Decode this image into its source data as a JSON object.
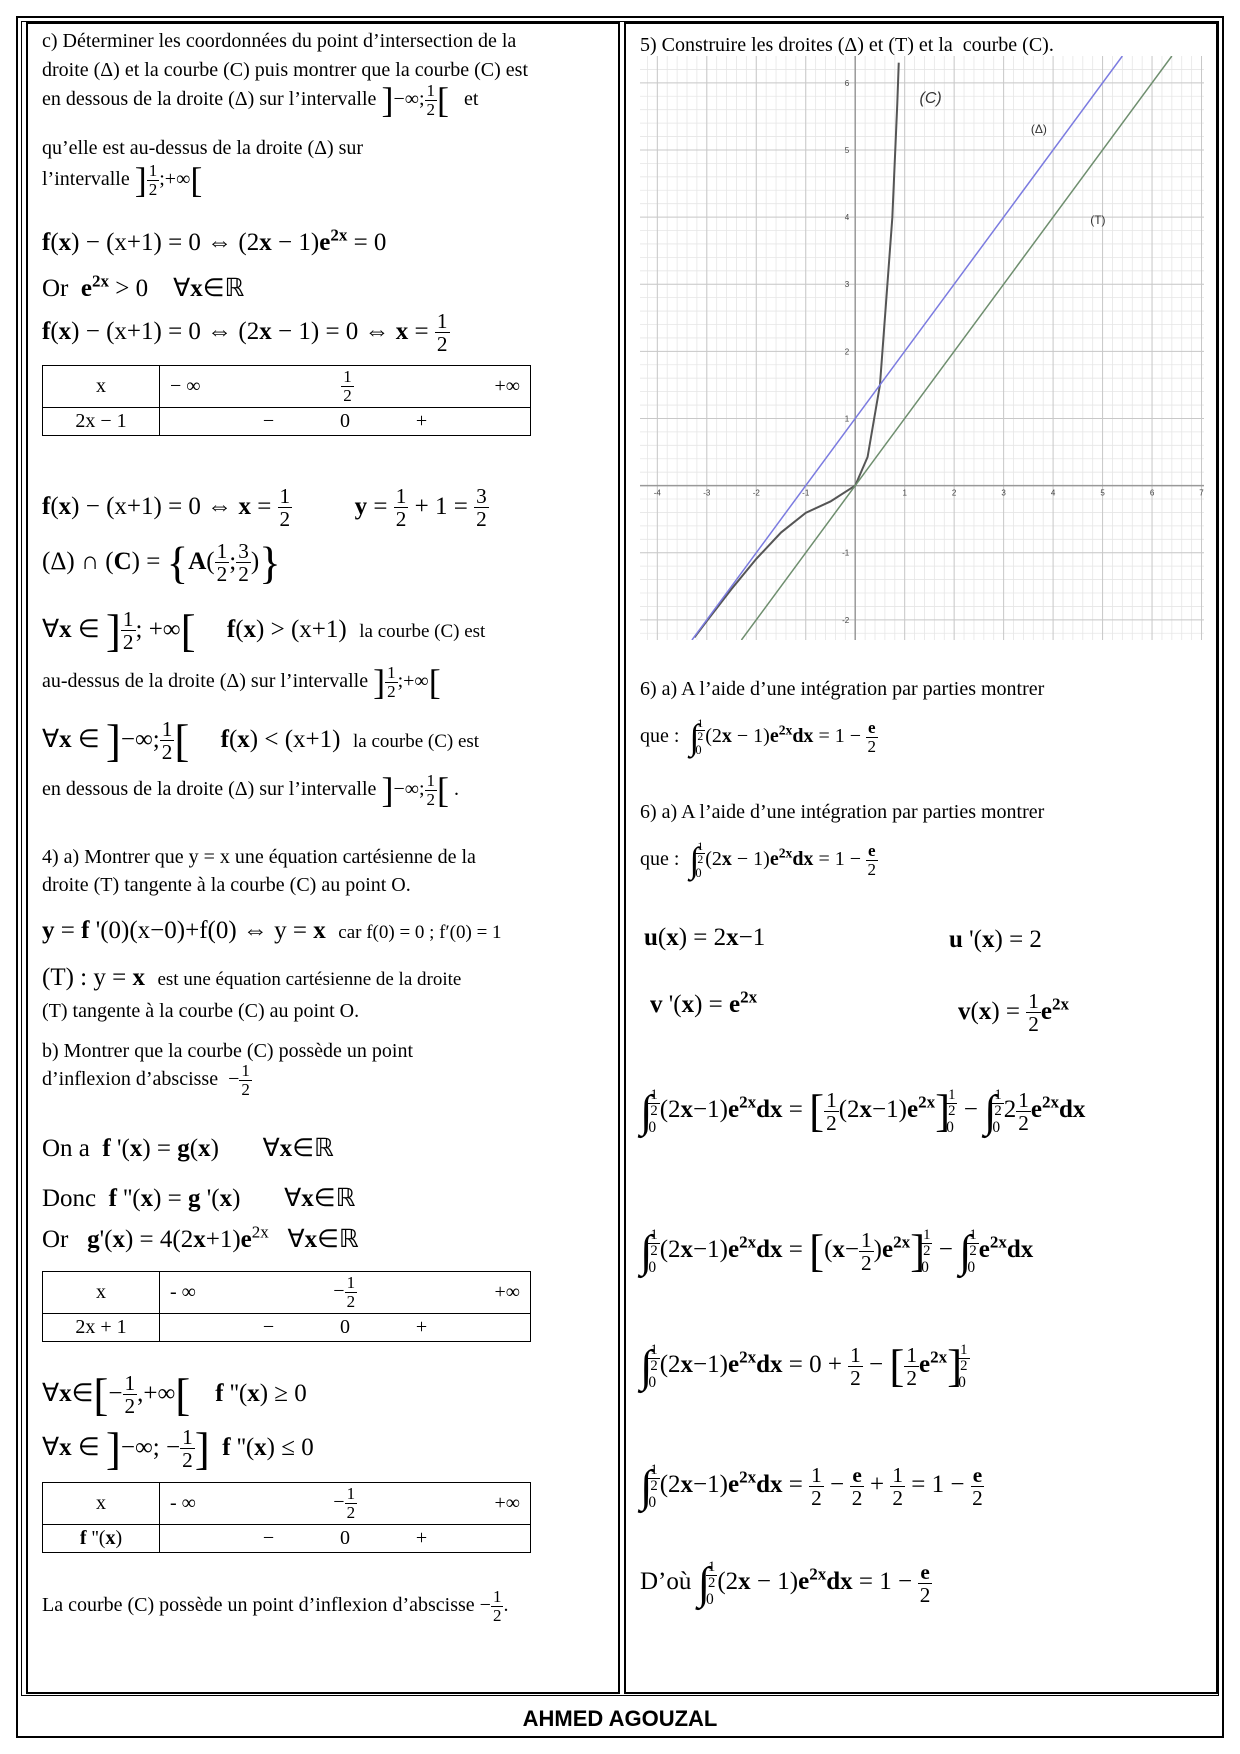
{
  "left": [
    "c) Déterminer les coordonnées du point d’intersection de la",
    "droite (Δ) et la courbe (C) puis montrer que la courbe (C) est",
    [
      "en dessous de la droite (Δ) sur l’intervalle ",
      {
        "big": "]"
      },
      "−∞;",
      {
        "frac": [
          "1",
          "2"
        ]
      },
      {
        "big": "["
      },
      "   et"
    ],
    "qu’elle est au-dessus de la droite (Δ) sur",
    [
      "l’intervalle ",
      {
        "big": "]"
      },
      {
        "frac": [
          "1",
          "2"
        ]
      },
      ";+∞",
      {
        "big": "["
      }
    ],
    [
      {
        "b": "f"
      },
      "(",
      {
        "b": "x"
      },
      ") − (x+1) = 0 ⇔ (2",
      {
        "b": "x"
      },
      " − 1)",
      {
        "b": "e"
      },
      {
        "sup": {
          "b": "2x"
        }
      },
      " = 0"
    ],
    [
      "Or  ",
      {
        "b": "e"
      },
      {
        "sup": {
          "b": "2x"
        }
      },
      " > 0    ∀",
      {
        "b": "x"
      },
      "∈ℝ"
    ],
    [
      {
        "b": "f"
      },
      "(",
      {
        "b": "x"
      },
      ") − (x+1) = 0 ⇔ (2",
      {
        "b": "x"
      },
      " − 1) = 0 ⇔ ",
      {
        "b": "x"
      },
      " = ",
      {
        "frac": [
          "1",
          "2"
        ]
      }
    ],
    [
      {
        "b": "f"
      },
      "(",
      {
        "b": "x"
      },
      ") − (x+1) = 0 ⇔ ",
      {
        "b": "x"
      },
      " = ",
      {
        "frac": [
          "1",
          "2"
        ]
      },
      "          ",
      {
        "b": "y"
      },
      " = ",
      {
        "frac": [
          "1",
          "2"
        ]
      },
      " + 1 = ",
      {
        "frac": [
          "3",
          "2"
        ]
      }
    ],
    [
      "(Δ) ∩ (",
      {
        "b": "C"
      },
      ") = ",
      {
        "big": "{"
      },
      {
        "b": "A"
      },
      "(",
      {
        "frac": [
          "1",
          "2"
        ]
      },
      ";",
      {
        "frac": [
          "3",
          "2"
        ]
      },
      ")",
      {
        "big": "}"
      }
    ],
    [
      "∀",
      {
        "b": "x"
      },
      " ∈ ",
      {
        "big": "]"
      },
      {
        "frac": [
          "1",
          "2"
        ]
      },
      "; +∞",
      {
        "big": "["
      },
      "     ",
      {
        "b": "f"
      },
      "(",
      {
        "b": "x"
      },
      ") > (x+1)  ",
      {
        "small": "la courbe (C) est"
      }
    ],
    [
      "au-dessus de la droite (Δ) sur l’intervalle ",
      {
        "big": "]"
      },
      {
        "frac": [
          "1",
          "2"
        ]
      },
      ";+∞",
      {
        "big": "["
      }
    ],
    [
      "∀",
      {
        "b": "x"
      },
      " ∈ ",
      {
        "big": "]"
      },
      "−∞;",
      {
        "frac": [
          "1",
          "2"
        ]
      },
      {
        "big": "["
      },
      "     ",
      {
        "b": "f"
      },
      "(",
      {
        "b": "x"
      },
      ") < (x+1)  ",
      {
        "small": "la courbe (C) est"
      }
    ],
    [
      "en dessous de la droite (Δ) sur l’intervalle ",
      {
        "big": "]"
      },
      "−∞;",
      {
        "frac": [
          "1",
          "2"
        ]
      },
      {
        "big": "["
      },
      " ."
    ],
    "4) a) Montrer que y = x une équation cartésienne de la",
    "droite (T) tangente à la courbe (C) au point O.",
    [
      {
        "b": "y"
      },
      " = ",
      {
        "b": "f"
      },
      " '(0)(x−0)+f(0) ⇔ y = ",
      {
        "b": "x"
      },
      "  ",
      {
        "small": "car f(0) = 0 ; f′(0) = 1"
      }
    ],
    [
      "(T) : y = ",
      {
        "b": "x"
      },
      "  ",
      {
        "small": "est une équation cartésienne de la droite"
      }
    ],
    "(T) tangente à la courbe (C) au point O.",
    "b) Montrer que la courbe (C) possède un point",
    [
      "d’inflexion d’abscisse  −",
      {
        "frac": [
          "1",
          "2"
        ]
      }
    ],
    [
      "On a  ",
      {
        "b": "f"
      },
      " '(",
      {
        "b": "x"
      },
      ") = ",
      {
        "b": "g"
      },
      "(",
      {
        "b": "x"
      },
      ")       ∀",
      {
        "b": "x"
      },
      "∈ℝ"
    ],
    [
      "Donc  ",
      {
        "b": "f"
      },
      " ''(",
      {
        "b": "x"
      },
      ") = ",
      {
        "b": "g"
      },
      " '(",
      {
        "b": "x"
      },
      ")       ∀",
      {
        "b": "x"
      },
      "∈ℝ"
    ],
    [
      "Or   ",
      {
        "b": "g"
      },
      "'(",
      {
        "b": "x"
      },
      ") = 4(2",
      {
        "b": "x"
      },
      "+1)",
      {
        "b": "e"
      },
      {
        "sup": "2x"
      },
      "   ∀",
      {
        "b": "x"
      },
      "∈ℝ"
    ],
    [
      "∀",
      {
        "b": "x"
      },
      "∈",
      {
        "big": "["
      },
      "−",
      {
        "frac": [
          "1",
          "2"
        ]
      },
      ",+∞",
      {
        "big": "["
      },
      "    ",
      {
        "b": "f"
      },
      " ''(",
      {
        "b": "x"
      },
      ") ≥ 0"
    ],
    [
      "∀",
      {
        "b": "x"
      },
      " ∈ ",
      {
        "big": "]"
      },
      "−∞; −",
      {
        "frac": [
          "1",
          "2"
        ]
      },
      {
        "big": "]"
      },
      "  ",
      {
        "b": "f"
      },
      " ''(",
      {
        "b": "x"
      },
      ") ≤ 0"
    ],
    [
      "La courbe (C) possède un point d’inflexion d’abscisse −",
      {
        "frac": [
          "1",
          "2"
        ]
      },
      "."
    ]
  ],
  "tables": [
    {
      "rows": [
        [
          "x",
          [
            "− ∞",
            {
              "frac": [
                "1",
                "2"
              ]
            },
            "+∞"
          ]
        ],
        [
          "2x − 1",
          [
            "−",
            "0",
            "+"
          ]
        ]
      ]
    },
    {
      "rows": [
        [
          "x",
          [
            "- ∞",
            [
              "−",
              {
                "frac": [
                  "1",
                  "2"
                ]
              }
            ],
            "+∞"
          ]
        ],
        [
          "2x + 1",
          [
            "−",
            "0",
            "+"
          ]
        ]
      ]
    },
    {
      "rows": [
        [
          "x",
          [
            "- ∞",
            [
              "−",
              {
                "frac": [
                  "1",
                  "2"
                ]
              }
            ],
            "+∞"
          ]
        ],
        [
          [
            {
              "b": "f"
            },
            " ''(",
            {
              "b": "x"
            },
            ")"
          ],
          [
            "−",
            "0",
            "+"
          ]
        ]
      ]
    }
  ],
  "right": [
    "5) Construire les droites (Δ) et (T) et la  courbe (C).",
    "6) a) A l’aide d’une intégration par parties montrer",
    [
      "que :  ",
      {
        "big": "∫"
      },
      {
        "lim": {
          "hi": {
            "frac": [
              "1",
              "2"
            ]
          },
          "lo": "0"
        }
      },
      "(2",
      {
        "b": "x"
      },
      " − 1)",
      {
        "b": "e"
      },
      {
        "sup": {
          "b": "2x"
        }
      },
      {
        "b": "dx"
      },
      " = 1 − ",
      {
        "frac": [
          {
            "b": "e"
          },
          "2"
        ]
      }
    ],
    "6) a) A l’aide d’une intégration par parties montrer",
    [
      "que :  ",
      {
        "big": "∫"
      },
      {
        "lim": {
          "hi": {
            "frac": [
              "1",
              "2"
            ]
          },
          "lo": "0"
        }
      },
      "(2",
      {
        "b": "x"
      },
      " − 1)",
      {
        "b": "e"
      },
      {
        "sup": {
          "b": "2x"
        }
      },
      {
        "b": "dx"
      },
      " = 1 − ",
      {
        "frac": [
          {
            "b": "e"
          },
          "2"
        ]
      }
    ],
    [
      {
        "b": "u"
      },
      "(",
      {
        "b": "x"
      },
      ") = 2",
      {
        "b": "x"
      },
      "−1"
    ],
    [
      {
        "b": "u"
      },
      " '(",
      {
        "b": "x"
      },
      ") = 2"
    ],
    [
      {
        "b": "v"
      },
      " '(",
      {
        "b": "x"
      },
      ") = ",
      {
        "b": "e"
      },
      {
        "sup": {
          "b": "2x"
        }
      }
    ],
    [
      {
        "b": "v"
      },
      "(",
      {
        "b": "x"
      },
      ") = ",
      {
        "frac": [
          "1",
          "2"
        ]
      },
      {
        "b": "e"
      },
      {
        "sup": {
          "b": "2x"
        }
      }
    ],
    [
      {
        "big": "∫"
      },
      {
        "lim": {
          "hi": {
            "frac": [
              "1",
              "2"
            ]
          },
          "lo": "0"
        }
      },
      "(2",
      {
        "b": "x"
      },
      "−1)",
      {
        "b": "e"
      },
      {
        "sup": {
          "b": "2x"
        }
      },
      {
        "b": "dx"
      },
      " = ",
      {
        "big": "["
      },
      {
        "frac": [
          "1",
          "2"
        ]
      },
      "(2",
      {
        "b": "x"
      },
      "−1)",
      {
        "b": "e"
      },
      {
        "sup": {
          "b": "2x"
        }
      },
      {
        "big": "]"
      },
      {
        "lim": {
          "hi": {
            "frac": [
              "1",
              "2"
            ]
          },
          "lo": "0"
        }
      },
      " − ",
      {
        "big": "∫"
      },
      {
        "lim": {
          "hi": {
            "frac": [
              "1",
              "2"
            ]
          },
          "lo": "0"
        }
      },
      "2",
      {
        "frac": [
          "1",
          "2"
        ]
      },
      {
        "b": "e"
      },
      {
        "sup": {
          "b": "2x"
        }
      },
      {
        "b": "dx"
      }
    ],
    [
      {
        "big": "∫"
      },
      {
        "lim": {
          "hi": {
            "frac": [
              "1",
              "2"
            ]
          },
          "lo": "0"
        }
      },
      "(2",
      {
        "b": "x"
      },
      "−1)",
      {
        "b": "e"
      },
      {
        "sup": {
          "b": "2x"
        }
      },
      {
        "b": "dx"
      },
      " = ",
      {
        "big": "["
      },
      "(",
      {
        "b": "x"
      },
      "−",
      {
        "frac": [
          "1",
          "2"
        ]
      },
      ")",
      {
        "b": "e"
      },
      {
        "sup": {
          "b": "2x"
        }
      },
      {
        "big": "]"
      },
      {
        "lim": {
          "hi": {
            "frac": [
              "1",
              "2"
            ]
          },
          "lo": "0"
        }
      },
      " − ",
      {
        "big": "∫"
      },
      {
        "lim": {
          "hi": {
            "frac": [
              "1",
              "2"
            ]
          },
          "lo": "0"
        }
      },
      {
        "b": "e"
      },
      {
        "sup": {
          "b": "2x"
        }
      },
      {
        "b": "dx"
      }
    ],
    [
      {
        "big": "∫"
      },
      {
        "lim": {
          "hi": {
            "frac": [
              "1",
              "2"
            ]
          },
          "lo": "0"
        }
      },
      "(2",
      {
        "b": "x"
      },
      "−1)",
      {
        "b": "e"
      },
      {
        "sup": {
          "b": "2x"
        }
      },
      {
        "b": "dx"
      },
      " = 0 + ",
      {
        "frac": [
          "1",
          "2"
        ]
      },
      " − ",
      {
        "big": "["
      },
      {
        "frac": [
          "1",
          "2"
        ]
      },
      {
        "b": "e"
      },
      {
        "sup": {
          "b": "2x"
        }
      },
      {
        "big": "]"
      },
      {
        "lim": {
          "hi": {
            "frac": [
              "1",
              "2"
            ]
          },
          "lo": "0"
        }
      }
    ],
    [
      {
        "big": "∫"
      },
      {
        "lim": {
          "hi": {
            "frac": [
              "1",
              "2"
            ]
          },
          "lo": "0"
        }
      },
      "(2",
      {
        "b": "x"
      },
      "−1)",
      {
        "b": "e"
      },
      {
        "sup": {
          "b": "2x"
        }
      },
      {
        "b": "dx"
      },
      " = ",
      {
        "frac": [
          "1",
          "2"
        ]
      },
      " − ",
      {
        "frac": [
          {
            "b": "e"
          },
          "2"
        ]
      },
      " + ",
      {
        "frac": [
          "1",
          "2"
        ]
      },
      " = 1 − ",
      {
        "frac": [
          {
            "b": "e"
          },
          "2"
        ]
      }
    ],
    [
      "D’où ",
      {
        "big": "∫"
      },
      {
        "lim": {
          "hi": {
            "frac": [
              "1",
              "2"
            ]
          },
          "lo": "0"
        }
      },
      "(2",
      {
        "b": "x"
      },
      " − 1)",
      {
        "b": "e"
      },
      {
        "sup": {
          "b": "2x"
        }
      },
      {
        "b": "dx"
      },
      " = 1 − ",
      {
        "frac": [
          {
            "b": "e"
          },
          "2"
        ]
      }
    ]
  ],
  "chart_data": {
    "type": "line",
    "xlim": [
      -4.35,
      7.05
    ],
    "ylim": [
      -2.3,
      6.4
    ],
    "xticks": [
      -4,
      -3,
      -2,
      -1,
      1,
      2,
      3,
      4,
      5,
      6,
      7
    ],
    "yticks": [
      -2,
      -1,
      1,
      2,
      3,
      4,
      5,
      6
    ],
    "grid": true,
    "series": [
      {
        "name": "(C)",
        "color": "#555555",
        "x": [
          -3.25,
          -3,
          -2.5,
          -2,
          -1.5,
          -1,
          -0.5,
          0,
          0.25,
          0.5,
          0.75,
          0.85,
          0.88
        ],
        "values": [
          -2.261,
          -2.017,
          -1.54,
          -1.092,
          -0.699,
          -0.406,
          -0.236,
          0,
          0.426,
          1.5,
          3.991,
          5.68,
          6.3
        ]
      },
      {
        "name": "(Δ)",
        "color": "#7b7be0",
        "x": [
          -3.3,
          5.4
        ],
        "values": [
          -2.3,
          6.4
        ]
      },
      {
        "name": "(T)",
        "color": "#6e8e6e",
        "x": [
          -2.3,
          6.4
        ],
        "values": [
          -2.3,
          6.4
        ]
      }
    ]
  },
  "footer": "AHMED AGOUZAL"
}
